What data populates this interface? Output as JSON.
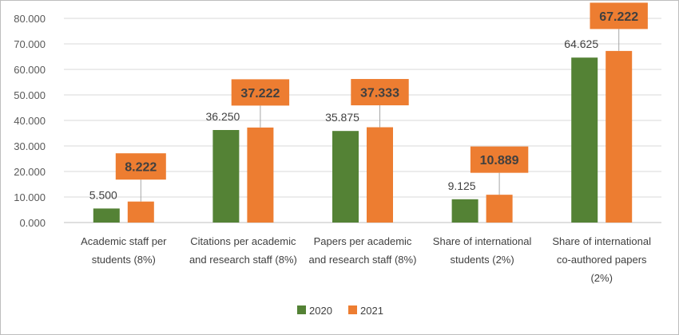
{
  "chart_data": {
    "type": "bar",
    "categories": [
      [
        "Academic staff per",
        "students (8%)"
      ],
      [
        "Citations per academic",
        "and research staff (8%)"
      ],
      [
        "Papers per academic",
        "and research staff (8%)"
      ],
      [
        "Share of international",
        "students (2%)"
      ],
      [
        "Share of international",
        "co-authored papers",
        "(2%)"
      ]
    ],
    "series": [
      {
        "name": "2020",
        "color": "#548235",
        "values": [
          5.5,
          36.25,
          35.875,
          9.125,
          64.625
        ],
        "labels": [
          "5.500",
          "36.250",
          "35.875",
          "9.125",
          "64.625"
        ]
      },
      {
        "name": "2021",
        "color": "#ED7D31",
        "values": [
          8.222,
          37.222,
          37.333,
          10.889,
          67.222
        ],
        "labels": [
          "8.222",
          "37.222",
          "37.333",
          "10.889",
          "67.222"
        ]
      }
    ],
    "yticks": [
      "0.000",
      "10.000",
      "20.000",
      "30.000",
      "40.000",
      "50.000",
      "60.000",
      "70.000",
      "80.000"
    ],
    "ylim": [
      0,
      80
    ],
    "grid": true,
    "legend_position": "bottom",
    "title": "",
    "xlabel": "",
    "ylabel": ""
  }
}
